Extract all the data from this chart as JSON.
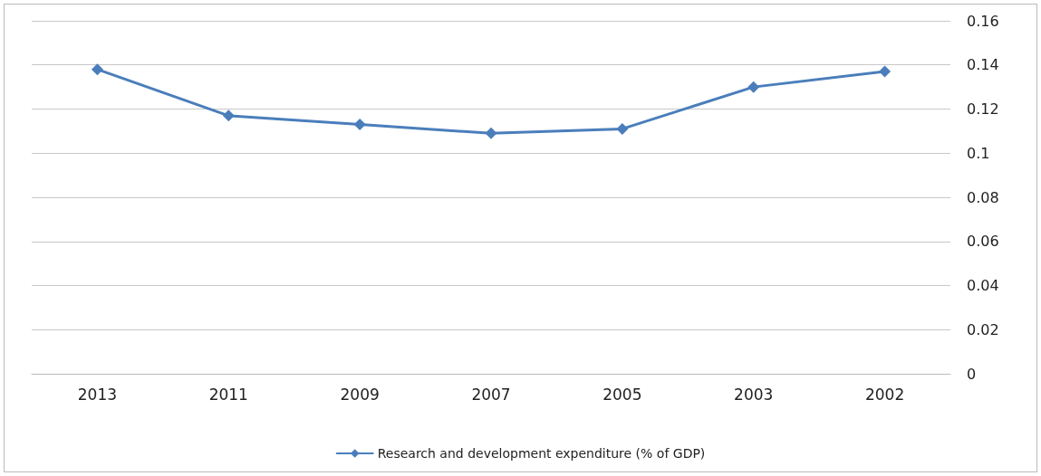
{
  "chart_data": {
    "type": "line",
    "categories": [
      "2013",
      "2011",
      "2009",
      "2007",
      "2005",
      "2003",
      "2002"
    ],
    "series": [
      {
        "name": "Research and development expenditure (% of GDP)",
        "color": "#4a7ebb",
        "values": [
          0.138,
          0.117,
          0.113,
          0.109,
          0.111,
          0.13,
          0.137
        ]
      }
    ],
    "ylim": [
      0,
      0.16
    ],
    "yticks": [
      0,
      0.02,
      0.04,
      0.06,
      0.08,
      0.1,
      0.12,
      0.14,
      0.16
    ],
    "grid": "y",
    "legend": "bottom",
    "marker": "diamond",
    "line_style": "solid"
  }
}
